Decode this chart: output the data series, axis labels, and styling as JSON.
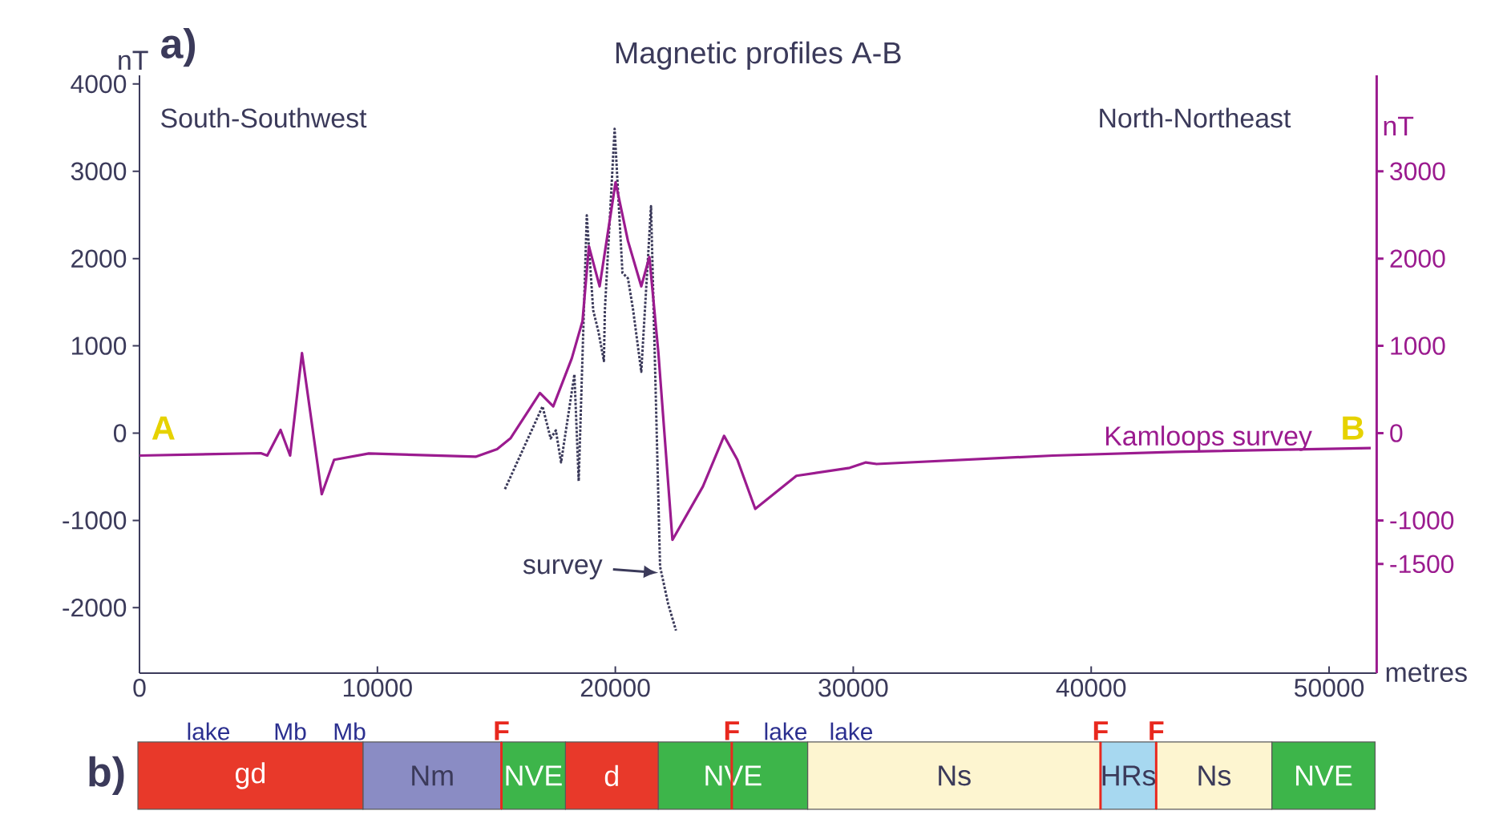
{
  "chart_data": [
    {
      "type": "line",
      "title": "Magnetic profiles A-B",
      "xlabel": "metres",
      "ylabel": "nT",
      "y2label": "nT",
      "annotations": [
        "a)",
        "South-Southwest",
        "North-Northeast",
        "A",
        "B"
      ],
      "series": [
        {
          "name": "Kamloops survey",
          "color": "#9b1b8f",
          "axis": "y2",
          "line_style": "solid",
          "x": [
            0,
            5100,
            5370,
            5930,
            6330,
            6830,
            7660,
            8180,
            9640,
            14130,
            15030,
            15590,
            16830,
            17390,
            18170,
            18620,
            18890,
            19340,
            20010,
            20530,
            21090,
            21430,
            21810,
            22400,
            23680,
            24570,
            25130,
            25880,
            27610,
            29850,
            30530,
            30980,
            38390,
            43550,
            51750
          ],
          "values": [
            -257,
            -230,
            -257,
            37,
            -257,
            917,
            -700,
            -306,
            -233,
            -270,
            -183,
            -61,
            459,
            306,
            857,
            1284,
            2141,
            1682,
            2875,
            2202,
            1682,
            2018,
            917,
            -1223,
            -612,
            -31,
            -306,
            -868,
            -489,
            -398,
            -336,
            -354,
            -257,
            -214,
            -171
          ]
        },
        {
          "name": "survey",
          "color": "#3b3a5a",
          "line_style": "dotted",
          "x": [
            15360,
            16940,
            17280,
            17500,
            17720,
            18280,
            18460,
            18800,
            19070,
            19290,
            19520,
            19560,
            19970,
            20300,
            20530,
            20750,
            21090,
            21500,
            21880,
            22220,
            22550
          ],
          "values": [
            -642,
            306,
            -61,
            31,
            -336,
            673,
            -550,
            2495,
            1407,
            1162,
            826,
            1407,
            3486,
            1835,
            1774,
            1407,
            703,
            2600,
            -1529,
            -1957,
            -2263
          ]
        }
      ],
      "xlim": [
        0,
        52000
      ],
      "ylim": [
        -2750,
        4100
      ],
      "y2lim": [
        -2750,
        4100
      ],
      "xticks": [
        0,
        10000,
        20000,
        30000,
        40000,
        50000
      ],
      "yticks": [
        -2000,
        -1000,
        0,
        1000,
        2000,
        3000,
        4000
      ],
      "y2ticks": [
        -1500,
        -1000,
        0,
        1000,
        2000,
        3000
      ]
    },
    {
      "type": "bar",
      "orientation": "horizontal",
      "stacked": true,
      "categories": [
        null
      ],
      "tick_labels": false,
      "xlim": [
        0,
        52000
      ],
      "series": [
        {
          "name": "gd",
          "color": "#e8392a",
          "values": [
            9460
          ]
        },
        {
          "name": "Nm",
          "color": "#8a8cc4",
          "values": [
            5820
          ]
        },
        {
          "name": "NVE",
          "color": "#3db54a",
          "values": [
            2690
          ]
        },
        {
          "name": "d",
          "color": "#e8392a",
          "values": [
            3900
          ]
        },
        {
          "name": "NVE",
          "color": "#3db54a",
          "values": [
            6280
          ]
        },
        {
          "name": "Ns",
          "color": "#fdf5d0",
          "values": [
            12310
          ]
        },
        {
          "name": "HRs",
          "color": "#a7d8f0",
          "values": [
            2340
          ]
        },
        {
          "name": "Ns",
          "color": "#fdf5d0",
          "values": [
            4860
          ]
        },
        {
          "name": "NVE",
          "color": "#3db54a",
          "values": [
            4340
          ]
        }
      ],
      "ref_lines": [
        {
          "axis": "x",
          "value": 15280,
          "label": "F",
          "color": "#e8281e"
        },
        {
          "axis": "x",
          "value": 24960,
          "label": "F",
          "color": "#e8281e"
        },
        {
          "axis": "x",
          "value": 40460,
          "label": "F",
          "color": "#e8281e"
        },
        {
          "axis": "x",
          "value": 42800,
          "label": "F",
          "color": "#e8281e"
        }
      ],
      "annotations": [
        "b)",
        "lake",
        "Mb",
        "Mb",
        "lake",
        "lake"
      ]
    }
  ]
}
